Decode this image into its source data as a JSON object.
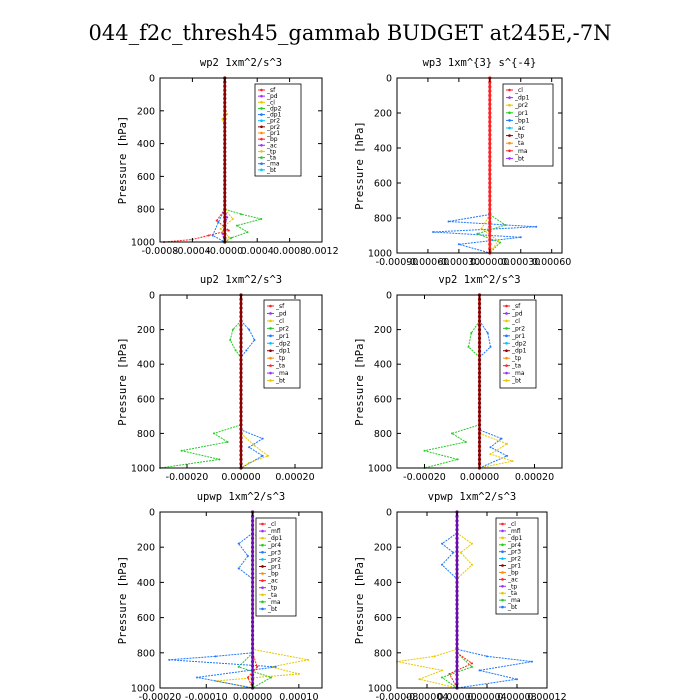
{
  "figure_title": "044_f2c_thresh45_gammab  BUDGET at245E,-7N",
  "chart_data": [
    {
      "type": "line",
      "title": "wp2   1xm^2/s^3",
      "ylabel": "Pressure [hPa]",
      "xlim": [
        -0.0008,
        0.0012
      ],
      "ylim": [
        1000,
        0
      ],
      "xticks": [
        "-0.0008",
        "-0.0004",
        "-0.0000",
        "0.0004",
        "0.0008",
        "0.0012"
      ],
      "xtick_values": [
        -0.0008,
        -0.0004,
        0,
        0.0004,
        0.0008,
        0.0012
      ],
      "yticks": [
        "0",
        "200",
        "400",
        "600",
        "800",
        "1000"
      ],
      "ytick_values": [
        0,
        200,
        400,
        600,
        800,
        1000
      ],
      "legend": [
        "_sf",
        "_pd",
        "_cl",
        "_dp2",
        "_dp1",
        "_pr2",
        "_pr2",
        "_pr1",
        "_bp",
        "_ac",
        "_tp",
        "_ta",
        "_ma",
        "_bt"
      ],
      "series": [
        {
          "color": "#9b30ff",
          "points": [
            [
              0,
              0
            ],
            [
              0,
              800
            ],
            [
              3e-05,
              850
            ],
            [
              0,
              900
            ],
            [
              -3e-05,
              950
            ],
            [
              0,
              1000
            ]
          ]
        },
        {
          "color": "#ff2020",
          "points": [
            [
              0,
              800
            ],
            [
              -0.0001,
              870
            ],
            [
              5e-05,
              930
            ],
            [
              -0.0002,
              960
            ],
            [
              -0.0004,
              985
            ],
            [
              -0.00075,
              1000
            ]
          ]
        },
        {
          "color": "#e6c800",
          "points": [
            [
              0,
              180
            ],
            [
              3e-05,
              220
            ],
            [
              -3e-05,
              250
            ],
            [
              0,
              300
            ],
            [
              0,
              800
            ],
            [
              0.0001,
              860
            ],
            [
              -5e-05,
              920
            ],
            [
              5e-05,
              970
            ],
            [
              0,
              1000
            ]
          ]
        },
        {
          "color": "#22cc22",
          "points": [
            [
              0,
              800
            ],
            [
              0.0002,
              830
            ],
            [
              0.00045,
              860
            ],
            [
              0.00015,
              900
            ],
            [
              0.00028,
              940
            ],
            [
              8e-05,
              975
            ],
            [
              0,
              1000
            ]
          ]
        },
        {
          "color": "#1f77ff",
          "points": [
            [
              0,
              800
            ],
            [
              -8e-05,
              880
            ],
            [
              -0.00015,
              960
            ],
            [
              0,
              1000
            ]
          ]
        },
        {
          "color": "#8b0000",
          "points": [
            [
              0,
              0
            ],
            [
              0,
              1000
            ]
          ],
          "marker": true
        }
      ]
    },
    {
      "type": "line",
      "title": "wp3   1xm^{3} s^{-4}",
      "ylabel": "Pressure [hPa]",
      "xlim": [
        -0.0009,
        0.0007
      ],
      "ylim": [
        1000,
        0
      ],
      "xticks": [
        "-0.00090",
        "-0.00060",
        "-0.00030",
        "0.00000",
        "0.00030",
        "0.00060"
      ],
      "xtick_values": [
        -0.0009,
        -0.0006,
        -0.0003,
        0,
        0.0003,
        0.0006
      ],
      "yticks": [
        "0",
        "200",
        "400",
        "600",
        "800",
        "1000"
      ],
      "ytick_values": [
        0,
        200,
        400,
        600,
        800,
        1000
      ],
      "legend": [
        "_cl",
        "_dp1",
        "_pr2",
        "_pr1",
        "_bp1",
        "_ac",
        "_tp",
        "_ta",
        "_ma",
        "_bt"
      ],
      "series": [
        {
          "color": "#1f77ff",
          "points": [
            [
              0,
              780
            ],
            [
              -0.0004,
              820
            ],
            [
              0.00045,
              850
            ],
            [
              -0.00055,
              880
            ],
            [
              0.0003,
              910
            ],
            [
              -0.0003,
              950
            ],
            [
              0,
              1000
            ]
          ]
        },
        {
          "color": "#22cc22",
          "points": [
            [
              0,
              780
            ],
            [
              0.00015,
              840
            ],
            [
              -0.00012,
              890
            ],
            [
              0.0001,
              940
            ],
            [
              0,
              1000
            ]
          ]
        },
        {
          "color": "#e6c800",
          "points": [
            [
              0,
              780
            ],
            [
              -8e-05,
              860
            ],
            [
              8e-05,
              930
            ],
            [
              0,
              1000
            ]
          ]
        },
        {
          "color": "#ff2020",
          "points": [
            [
              0,
              0
            ],
            [
              0,
              1000
            ]
          ],
          "marker": true
        }
      ]
    },
    {
      "type": "line",
      "title": "up2   1xm^2/s^3",
      "ylabel": "Pressure [hPa]",
      "xlim": [
        -0.0003,
        0.0003
      ],
      "ylim": [
        1000,
        0
      ],
      "xticks": [
        "-0.00020",
        "0.00000",
        "0.00020"
      ],
      "xtick_values": [
        -0.0002,
        0,
        0.0002
      ],
      "yticks": [
        "0",
        "200",
        "400",
        "600",
        "800",
        "1000"
      ],
      "ytick_values": [
        0,
        200,
        400,
        600,
        800,
        1000
      ],
      "legend": [
        "_sf",
        "_pd",
        "_cl",
        "_pr2",
        "_pr1",
        "_dp2",
        "_dp1",
        "_tp",
        "_ta",
        "_ma",
        "_bt"
      ],
      "series": [
        {
          "color": "#22cc22",
          "points": [
            [
              0,
              150
            ],
            [
              -3e-05,
              200
            ],
            [
              -4e-05,
              260
            ],
            [
              -2e-05,
              320
            ],
            [
              0,
              360
            ],
            [
              0,
              750
            ],
            [
              -0.0001,
              800
            ],
            [
              -5e-05,
              850
            ],
            [
              -0.00022,
              900
            ],
            [
              -8e-05,
              950
            ],
            [
              -0.0003,
              1000
            ]
          ]
        },
        {
          "color": "#1f77ff",
          "points": [
            [
              0,
              150
            ],
            [
              3e-05,
              200
            ],
            [
              5e-05,
              260
            ],
            [
              2e-05,
              320
            ],
            [
              0,
              360
            ],
            [
              0,
              780
            ],
            [
              8e-05,
              830
            ],
            [
              3e-05,
              880
            ],
            [
              8e-05,
              930
            ],
            [
              0,
              1000
            ]
          ]
        },
        {
          "color": "#e6c800",
          "points": [
            [
              0,
              800
            ],
            [
              5e-05,
              870
            ],
            [
              0.0001,
              930
            ],
            [
              3e-05,
              970
            ],
            [
              0,
              1000
            ]
          ]
        },
        {
          "color": "#8b0000",
          "points": [
            [
              0,
              0
            ],
            [
              0,
              1000
            ]
          ],
          "marker": true
        }
      ]
    },
    {
      "type": "line",
      "title": "vp2   1xm^2/s^3",
      "ylabel": "Pressure [hPa]",
      "xlim": [
        -0.0003,
        0.0003
      ],
      "ylim": [
        1000,
        0
      ],
      "xticks": [
        "-0.00020",
        "0.00000",
        "0.00020"
      ],
      "xtick_values": [
        -0.0002,
        0,
        0.0002
      ],
      "yticks": [
        "0",
        "200",
        "400",
        "600",
        "800",
        "1000"
      ],
      "ytick_values": [
        0,
        200,
        400,
        600,
        800,
        1000
      ],
      "legend": [
        "_sf",
        "_pd",
        "_cl",
        "_pr2",
        "_pr1",
        "_dp2",
        "_dp1",
        "_tp",
        "_ta",
        "_ma",
        "_bt"
      ],
      "series": [
        {
          "color": "#22cc22",
          "points": [
            [
              0,
              150
            ],
            [
              -3e-05,
              220
            ],
            [
              -4e-05,
              300
            ],
            [
              0,
              360
            ],
            [
              0,
              750
            ],
            [
              -0.0001,
              800
            ],
            [
              -5e-05,
              850
            ],
            [
              -0.0002,
              900
            ],
            [
              -8e-05,
              950
            ],
            [
              -0.0002,
              1000
            ]
          ]
        },
        {
          "color": "#1f77ff",
          "points": [
            [
              0,
              150
            ],
            [
              3e-05,
              220
            ],
            [
              4e-05,
              300
            ],
            [
              0,
              360
            ],
            [
              0,
              780
            ],
            [
              8e-05,
              830
            ],
            [
              4e-05,
              880
            ],
            [
              0.0001,
              930
            ],
            [
              0,
              1000
            ]
          ]
        },
        {
          "color": "#e6c800",
          "points": [
            [
              0,
              800
            ],
            [
              0.0001,
              860
            ],
            [
              4e-05,
              920
            ],
            [
              0.00012,
              960
            ],
            [
              0,
              1000
            ]
          ]
        },
        {
          "color": "#8b0000",
          "points": [
            [
              0,
              0
            ],
            [
              0,
              1000
            ]
          ],
          "marker": true
        }
      ]
    },
    {
      "type": "line",
      "title": "upwp   1xm^2/s^3",
      "ylabel": "Pressure [hPa]",
      "xlim": [
        -0.0002,
        0.00015
      ],
      "ylim": [
        1000,
        0
      ],
      "xticks": [
        "-0.00020",
        "-0.00010",
        "0.00000",
        "0.00010"
      ],
      "xtick_values": [
        -0.0002,
        -0.0001,
        0,
        0.0001
      ],
      "yticks": [
        "0",
        "200",
        "400",
        "600",
        "800",
        "1000"
      ],
      "ytick_values": [
        0,
        200,
        400,
        600,
        800,
        1000
      ],
      "legend": [
        "_cl",
        "_mfl",
        "_dp1",
        "_pr4",
        "_pr3",
        "_pr2",
        "_pr1",
        "_bp",
        "_ac",
        "_tp",
        "_ta",
        "_ma",
        "_bt"
      ],
      "series": [
        {
          "color": "#e6c800",
          "points": [
            [
              0,
              120
            ],
            [
              3e-05,
              180
            ],
            [
              1e-05,
              250
            ],
            [
              3e-05,
              320
            ],
            [
              0,
              380
            ],
            [
              0,
              780
            ],
            [
              0.00012,
              840
            ],
            [
              4e-05,
              880
            ],
            [
              0.0001,
              920
            ],
            [
              -8e-05,
              960
            ],
            [
              0,
              1000
            ]
          ]
        },
        {
          "color": "#1f77ff",
          "points": [
            [
              0,
              120
            ],
            [
              -3e-05,
              180
            ],
            [
              -1e-05,
              250
            ],
            [
              -3e-05,
              320
            ],
            [
              0,
              380
            ],
            [
              0,
              800
            ],
            [
              -8e-05,
              820
            ],
            [
              -0.00018,
              840
            ],
            [
              5e-05,
              880
            ],
            [
              -0.00012,
              940
            ],
            [
              0,
              1000
            ]
          ]
        },
        {
          "color": "#22cc22",
          "points": [
            [
              0,
              800
            ],
            [
              -3e-05,
              880
            ],
            [
              4e-05,
              940
            ],
            [
              0,
              1000
            ]
          ]
        },
        {
          "color": "#ff2020",
          "points": [
            [
              0,
              800
            ],
            [
              1e-05,
              880
            ],
            [
              -1e-05,
              940
            ],
            [
              0,
              1000
            ]
          ]
        },
        {
          "color": "#6a0dad",
          "points": [
            [
              0,
              0
            ],
            [
              0,
              1000
            ]
          ],
          "marker": true
        }
      ]
    },
    {
      "type": "line",
      "title": "vpwp   1xm^2/s^3",
      "ylabel": "Pressure [hPa]",
      "xlim": [
        -8e-05,
        0.00012
      ],
      "ylim": [
        1000,
        0
      ],
      "xticks": [
        "-0.00008",
        "-0.00004",
        "0.00000",
        "0.00004",
        "0.00008",
        "0.00012"
      ],
      "xtick_values": [
        -8e-05,
        -4e-05,
        0,
        4e-05,
        8e-05,
        0.00012
      ],
      "yticks": [
        "0",
        "200",
        "400",
        "600",
        "800",
        "1000"
      ],
      "ytick_values": [
        0,
        200,
        400,
        600,
        800,
        1000
      ],
      "legend": [
        "_cl",
        "_mfl",
        "_dp1",
        "_pr4",
        "_pr3",
        "_pr2",
        "_pr1",
        "_bp",
        "_ac",
        "_tp",
        "_ta",
        "_ma",
        "_bt"
      ],
      "series": [
        {
          "color": "#1f77ff",
          "points": [
            [
              0,
              120
            ],
            [
              -2e-05,
              180
            ],
            [
              -5e-06,
              230
            ],
            [
              -2e-05,
              300
            ],
            [
              0,
              380
            ],
            [
              0,
              780
            ],
            [
              4e-05,
              820
            ],
            [
              0.0001,
              850
            ],
            [
              3e-05,
              900
            ],
            [
              8e-05,
              950
            ],
            [
              0,
              1000
            ]
          ]
        },
        {
          "color": "#e6c800",
          "points": [
            [
              0,
              120
            ],
            [
              2e-05,
              180
            ],
            [
              5e-06,
              230
            ],
            [
              2e-05,
              300
            ],
            [
              0,
              380
            ],
            [
              0,
              780
            ],
            [
              -3e-05,
              820
            ],
            [
              -8e-05,
              850
            ],
            [
              -2e-05,
              900
            ],
            [
              -5e-05,
              950
            ],
            [
              0,
              1000
            ]
          ]
        },
        {
          "color": "#22cc22",
          "points": [
            [
              0,
              800
            ],
            [
              2e-05,
              880
            ],
            [
              -2e-05,
              940
            ],
            [
              0,
              1000
            ]
          ]
        },
        {
          "color": "#ff2020",
          "points": [
            [
              0,
              800
            ],
            [
              2e-05,
              860
            ],
            [
              -1e-05,
              920
            ],
            [
              0,
              1000
            ]
          ]
        },
        {
          "color": "#6a0dad",
          "points": [
            [
              0,
              0
            ],
            [
              0,
              1000
            ]
          ],
          "marker": true
        }
      ]
    }
  ],
  "legend_colors": [
    "#ff2020",
    "#9b30ff",
    "#e6c800",
    "#22cc22",
    "#1f77ff",
    "#00bfff",
    "#8b0000",
    "#ff8c00"
  ]
}
